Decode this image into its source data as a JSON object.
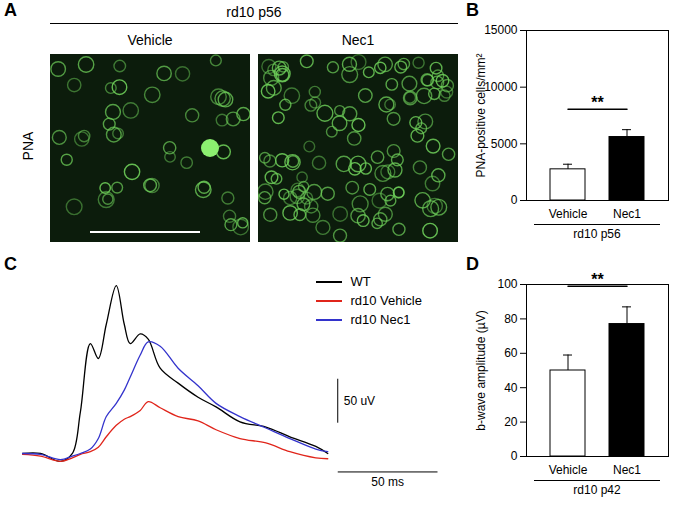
{
  "chart_data": [
    {
      "panel": "A",
      "type": "image",
      "title": "rd10 p56",
      "categories": [
        "Vehicle",
        "Nec1"
      ],
      "ylabel": "PNA"
    },
    {
      "panel": "B",
      "type": "bar",
      "categories": [
        "Vehicle",
        "Nec1"
      ],
      "values": [
        2750,
        5600
      ],
      "errors": [
        450,
        650
      ],
      "colors": [
        "#ffffff",
        "#000000"
      ],
      "ylabel": "PNA-positive cells/mm²",
      "group_label": "rd10 p56",
      "ylim": [
        0,
        15000
      ],
      "yticks": [
        0,
        5000,
        10000,
        15000
      ],
      "annotations": [
        {
          "text": "**",
          "between": [
            "Vehicle",
            "Nec1"
          ]
        }
      ]
    },
    {
      "panel": "C",
      "type": "line",
      "tick_labels": false,
      "legend": "top-right",
      "x": [
        0,
        9,
        19,
        25,
        29,
        34,
        38,
        42,
        47,
        51,
        54,
        59,
        63,
        69,
        78,
        88,
        97,
        109,
        122,
        134,
        147,
        153
      ],
      "series": [
        {
          "name": "WT",
          "color": "#000000",
          "values": [
            3,
            3,
            -6,
            3,
            50,
            128,
            111,
            150,
            194,
            150,
            128,
            139,
            133,
            100,
            83,
            67,
            56,
            39,
            33,
            22,
            11,
            3
          ]
        },
        {
          "name": "rd10 Vehicle",
          "color": "#e0251b",
          "values": [
            2,
            0,
            -6,
            -2,
            2,
            5,
            10,
            22,
            35,
            42,
            45,
            52,
            62,
            55,
            45,
            40,
            30,
            20,
            15,
            5,
            -2,
            -3
          ]
        },
        {
          "name": "rd10 Nec1",
          "color": "#3333cc",
          "values": [
            3,
            2,
            -4,
            0,
            3,
            8,
            20,
            45,
            60,
            75,
            90,
            115,
            130,
            125,
            100,
            80,
            60,
            45,
            32,
            20,
            8,
            5
          ]
        }
      ],
      "scale_bar": {
        "x": 50,
        "x_label": "50 ms",
        "y": 50,
        "y_label": "50 uV"
      }
    },
    {
      "panel": "D",
      "type": "bar",
      "categories": [
        "Vehicle",
        "Nec1"
      ],
      "values": [
        50,
        77
      ],
      "errors": [
        9,
        10
      ],
      "colors": [
        "#ffffff",
        "#000000"
      ],
      "ylabel": "b-wave amplitude (µV)",
      "group_label": "rd10 p42",
      "ylim": [
        0,
        100
      ],
      "yticks": [
        0,
        20,
        40,
        60,
        80,
        100
      ],
      "annotations": [
        {
          "text": "**",
          "between": [
            "Vehicle",
            "Nec1"
          ]
        }
      ]
    }
  ]
}
